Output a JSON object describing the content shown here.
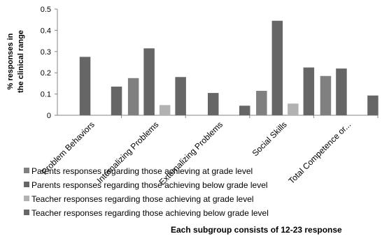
{
  "chart_data": {
    "type": "bar",
    "ylabel": "% responses in the clinical range",
    "xlabel": "",
    "footnote": "Each subgroup consists of 12-23 response",
    "ylim": [
      0,
      0.5
    ],
    "yticks": [
      "0",
      "0.1",
      "0.2",
      "0.3",
      "0.4",
      "0.5"
    ],
    "grid": false,
    "legend_position": "bottom-left",
    "categories": [
      "Problem Behaviors",
      "Internalizing Problems",
      "Externalizing Problems",
      "Social Skills",
      "Total Competence or..."
    ],
    "series": [
      {
        "name": "Parents responses regarding those  achieving at grade level",
        "color": "#808080",
        "values": [
          null,
          0.175,
          null,
          0.115,
          0.185
        ]
      },
      {
        "name": "Parents responses regarding those  achieving below grade level",
        "color": "#666666",
        "values": [
          0.275,
          0.315,
          null,
          0.445,
          0.22
        ]
      },
      {
        "name": "Teacher responses regarding those  achieving at grade level",
        "color": "#b2b2b2",
        "values": [
          null,
          0.048,
          null,
          0.055,
          null
        ]
      },
      {
        "name": "Teacher responses regarding those  achieving below grade level",
        "color": "#666666",
        "values": [
          0.135,
          0.18,
          0.045,
          0.225,
          0.093
        ]
      }
    ],
    "extra_bars_note": ""
  },
  "extra_bars": [
    {
      "category_index": 2,
      "series_index": 1,
      "value": 0.105
    }
  ]
}
